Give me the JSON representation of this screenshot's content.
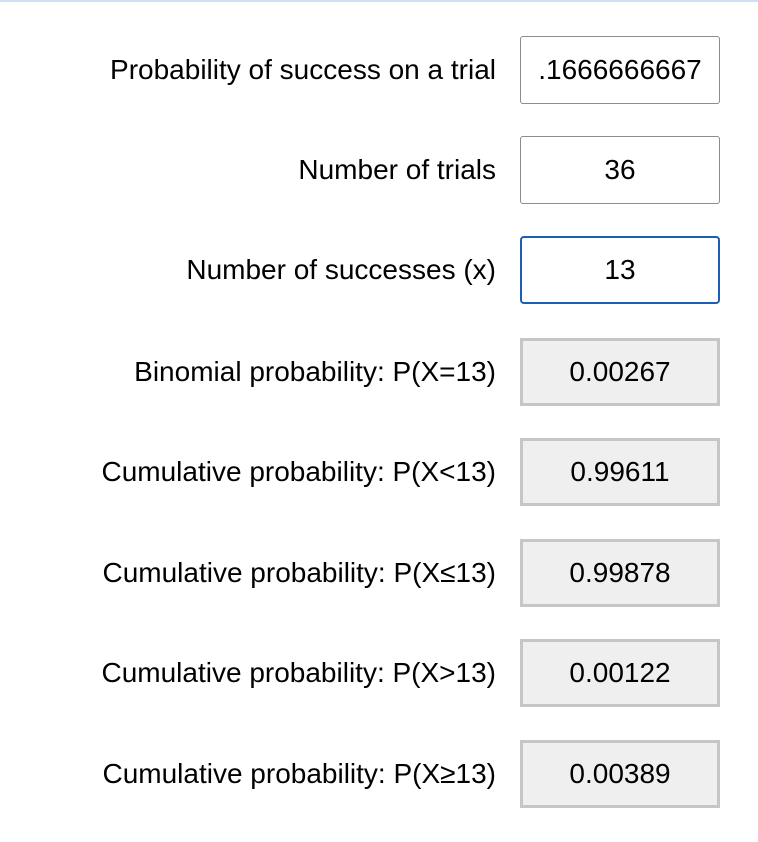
{
  "inputs": {
    "probability_label": "Probability of success on a trial",
    "probability_value": ".1666666667",
    "trials_label": "Number of trials",
    "trials_value": "36",
    "successes_label": "Number of successes (x)",
    "successes_value": "13"
  },
  "results": {
    "binomial_label": "Binomial probability: P(X=13)",
    "binomial_value": "0.00267",
    "cumulative_lt_label": "Cumulative probability: P(X<13)",
    "cumulative_lt_value": "0.99611",
    "cumulative_le_label": "Cumulative probability: P(X≤13)",
    "cumulative_le_value": "0.99878",
    "cumulative_gt_label": "Cumulative probability: P(X>13)",
    "cumulative_gt_value": "0.00122",
    "cumulative_ge_label": "Cumulative probability: P(X≥13)",
    "cumulative_ge_value": "0.00389"
  },
  "colors": {
    "focus_border": "#1a5fb4",
    "output_background": "#efefef",
    "output_border": "#c6c6c6"
  }
}
